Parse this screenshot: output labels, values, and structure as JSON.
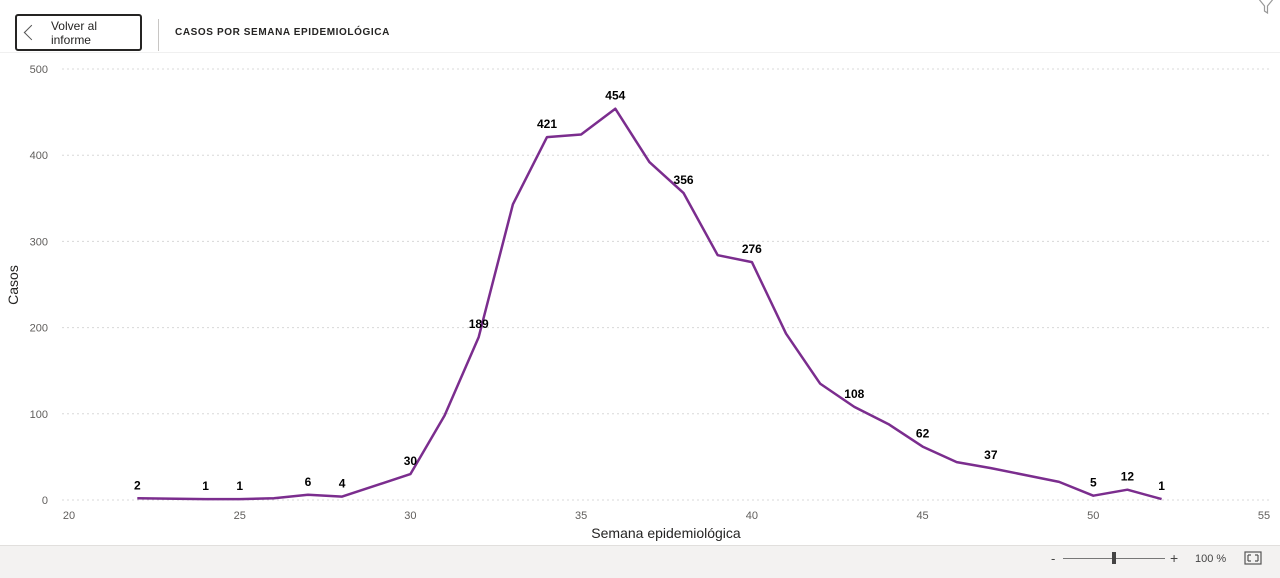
{
  "header": {
    "back_label": "Volver al informe",
    "title": "CASOS POR SEMANA EPIDEMIOLÓGICA"
  },
  "footer": {
    "zoom_minus": "-",
    "zoom_plus": "+",
    "zoom_level": "100 %",
    "zoom_fraction": 0.5
  },
  "icons": {
    "back": "chevron-left-icon",
    "filter": "filter-icon",
    "fit": "fit-to-page-icon"
  },
  "colors": {
    "line": "#7B2D8E",
    "grid": "#d8d8d8",
    "axis_text": "#605e5c"
  },
  "chart_data": {
    "type": "line",
    "title": "",
    "xlabel": "Semana epidemiológica",
    "ylabel": "Casos",
    "xlim": [
      20,
      55
    ],
    "ylim": [
      0,
      500
    ],
    "xticks": [
      20,
      25,
      30,
      35,
      40,
      45,
      50,
      55
    ],
    "yticks": [
      0,
      100,
      200,
      300,
      400,
      500
    ],
    "grid": true,
    "series": [
      {
        "x": [
          22,
          24,
          25,
          26,
          27,
          28,
          30,
          31,
          32,
          33,
          34,
          35,
          36,
          37,
          38,
          39,
          40,
          41,
          42,
          43,
          44,
          45,
          46,
          47,
          48,
          49,
          50,
          51,
          52
        ],
        "y": [
          2,
          1,
          1,
          2,
          6,
          4,
          30,
          98,
          189,
          343,
          421,
          424,
          454,
          392,
          356,
          284,
          276,
          193,
          135,
          108,
          88,
          62,
          44,
          37,
          29,
          21,
          5,
          12,
          1
        ]
      }
    ],
    "data_labels": [
      {
        "x": 22,
        "y": 2,
        "label": "2"
      },
      {
        "x": 24,
        "y": 1,
        "label": "1"
      },
      {
        "x": 25,
        "y": 1,
        "label": "1"
      },
      {
        "x": 27,
        "y": 6,
        "label": "6"
      },
      {
        "x": 28,
        "y": 4,
        "label": "4"
      },
      {
        "x": 30,
        "y": 30,
        "label": "30"
      },
      {
        "x": 32,
        "y": 189,
        "label": "189"
      },
      {
        "x": 34,
        "y": 421,
        "label": "421"
      },
      {
        "x": 36,
        "y": 454,
        "label": "454"
      },
      {
        "x": 38,
        "y": 356,
        "label": "356"
      },
      {
        "x": 40,
        "y": 276,
        "label": "276"
      },
      {
        "x": 43,
        "y": 108,
        "label": "108"
      },
      {
        "x": 45,
        "y": 62,
        "label": "62"
      },
      {
        "x": 47,
        "y": 37,
        "label": "37"
      },
      {
        "x": 50,
        "y": 5,
        "label": "5"
      },
      {
        "x": 51,
        "y": 12,
        "label": "12"
      },
      {
        "x": 52,
        "y": 1,
        "label": "1"
      }
    ]
  }
}
